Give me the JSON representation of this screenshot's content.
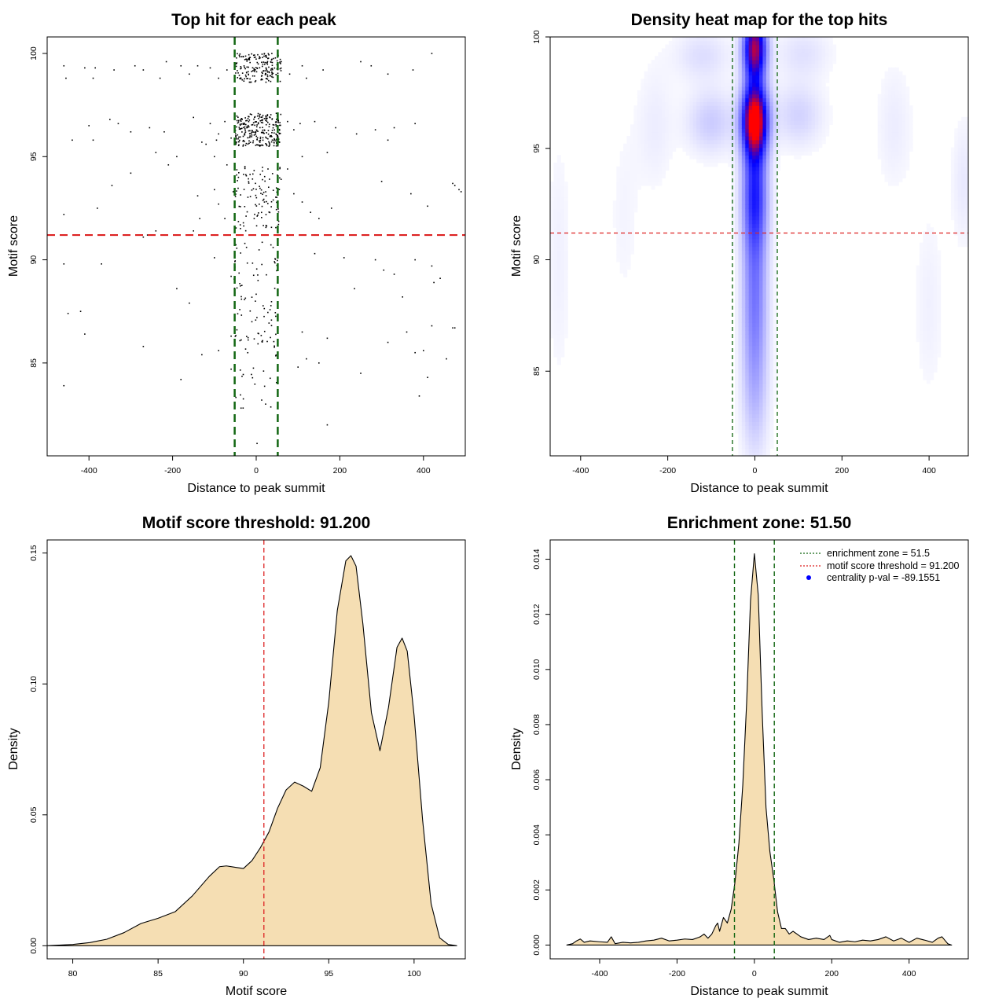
{
  "chart_data": [
    {
      "panel": "top-hit-scatter",
      "type": "scatter",
      "title": "Top hit for each peak",
      "xlabel": "Distance to peak summit",
      "ylabel": "Motif score",
      "xlim": [
        -500,
        500
      ],
      "ylim": [
        80.5,
        100.8
      ],
      "xticks": [
        -400,
        -200,
        0,
        200,
        400
      ],
      "yticks": [
        85,
        90,
        95,
        100
      ],
      "hline": {
        "y": 91.2,
        "color": "#dd2222",
        "style": "dashed"
      },
      "vlines": [
        {
          "x": -51.5,
          "color": "#116611",
          "style": "dashed"
        },
        {
          "x": 51.5,
          "color": "#116611",
          "style": "dashed"
        }
      ],
      "point_color": "#000000",
      "points": [
        [
          -460,
          99.4
        ],
        [
          -455,
          98.8
        ],
        [
          -410,
          99.3
        ],
        [
          -385,
          99.3
        ],
        [
          -390,
          98.8
        ],
        [
          -340,
          99.2
        ],
        [
          -290,
          99.4
        ],
        [
          -270,
          99.2
        ],
        [
          -215,
          99.6
        ],
        [
          -230,
          98.8
        ],
        [
          -180,
          99.4
        ],
        [
          -160,
          99.0
        ],
        [
          -140,
          99.4
        ],
        [
          -110,
          99.3
        ],
        [
          -90,
          98.8
        ],
        [
          -70,
          99.2
        ],
        [
          80,
          99.0
        ],
        [
          110,
          99.4
        ],
        [
          160,
          99.2
        ],
        [
          250,
          99.6
        ],
        [
          275,
          99.4
        ],
        [
          315,
          99.0
        ],
        [
          375,
          99.2
        ],
        [
          420,
          100.0
        ],
        [
          120,
          98.8
        ],
        [
          60,
          99.6
        ],
        [
          -400,
          96.5
        ],
        [
          -350,
          96.8
        ],
        [
          -330,
          96.6
        ],
        [
          -300,
          96.2
        ],
        [
          -255,
          96.4
        ],
        [
          -220,
          96.2
        ],
        [
          -150,
          96.9
        ],
        [
          -110,
          96.6
        ],
        [
          -90,
          96.1
        ],
        [
          -75,
          96.7
        ],
        [
          -60,
          95.9
        ],
        [
          -95,
          95.8
        ],
        [
          -120,
          95.6
        ],
        [
          -130,
          95.7
        ],
        [
          75,
          96.7
        ],
        [
          90,
          96.3
        ],
        [
          105,
          96.6
        ],
        [
          140,
          96.7
        ],
        [
          190,
          96.4
        ],
        [
          240,
          96.1
        ],
        [
          285,
          96.3
        ],
        [
          330,
          96.4
        ],
        [
          380,
          96.6
        ],
        [
          315,
          95.8
        ],
        [
          -390,
          95.8
        ],
        [
          -440,
          95.8
        ],
        [
          -190,
          95.0
        ],
        [
          -240,
          95.2
        ],
        [
          -210,
          94.6
        ],
        [
          -300,
          94.2
        ],
        [
          -100,
          95.0
        ],
        [
          -70,
          94.6
        ],
        [
          75,
          94.4
        ],
        [
          110,
          95.0
        ],
        [
          170,
          95.2
        ],
        [
          -345,
          93.6
        ],
        [
          -380,
          92.5
        ],
        [
          -460,
          92.2
        ],
        [
          -140,
          93.1
        ],
        [
          -100,
          93.4
        ],
        [
          -55,
          93.3
        ],
        [
          -90,
          92.7
        ],
        [
          -75,
          92.0
        ],
        [
          -135,
          92.0
        ],
        [
          -150,
          91.4
        ],
        [
          -240,
          91.4
        ],
        [
          -260,
          91.2
        ],
        [
          90,
          93.2
        ],
        [
          110,
          92.8
        ],
        [
          130,
          92.3
        ],
        [
          150,
          92.0
        ],
        [
          180,
          92.5
        ],
        [
          300,
          93.8
        ],
        [
          370,
          93.2
        ],
        [
          410,
          92.6
        ],
        [
          475,
          93.6
        ],
        [
          485,
          93.4
        ],
        [
          490,
          93.3
        ],
        [
          470,
          93.7
        ],
        [
          -270,
          91.1
        ],
        [
          -460,
          89.8
        ],
        [
          -370,
          89.8
        ],
        [
          -190,
          88.6
        ],
        [
          -160,
          87.9
        ],
        [
          -100,
          90.1
        ],
        [
          -60,
          89.2
        ],
        [
          140,
          90.3
        ],
        [
          210,
          90.1
        ],
        [
          235,
          88.6
        ],
        [
          285,
          90.0
        ],
        [
          305,
          89.5
        ],
        [
          330,
          89.3
        ],
        [
          350,
          88.2
        ],
        [
          380,
          90.0
        ],
        [
          420,
          89.7
        ],
        [
          425,
          88.9
        ],
        [
          440,
          89.1
        ],
        [
          -450,
          87.4
        ],
        [
          -420,
          87.5
        ],
        [
          -410,
          86.4
        ],
        [
          -270,
          85.8
        ],
        [
          -130,
          85.4
        ],
        [
          -90,
          85.6
        ],
        [
          -60,
          84.7
        ],
        [
          -60,
          86.3
        ],
        [
          -180,
          84.2
        ],
        [
          -460,
          83.9
        ],
        [
          110,
          86.5
        ],
        [
          150,
          85.0
        ],
        [
          170,
          86.2
        ],
        [
          250,
          84.5
        ],
        [
          315,
          86.0
        ],
        [
          360,
          86.5
        ],
        [
          380,
          85.5
        ],
        [
          400,
          85.6
        ],
        [
          410,
          84.3
        ],
        [
          455,
          85.2
        ],
        [
          470,
          86.7
        ],
        [
          475,
          86.7
        ],
        [
          420,
          86.8
        ],
        [
          390,
          83.4
        ],
        [
          170,
          82.0
        ],
        [
          100,
          84.8
        ],
        [
          120,
          85.2
        ],
        [
          2,
          81.1
        ]
      ],
      "clusters": [
        {
          "xc": 5,
          "xw": 55,
          "yc": 99.3,
          "yw": 0.7,
          "n": 180
        },
        {
          "xc": 5,
          "xw": 55,
          "yc": 96.3,
          "yw": 0.8,
          "n": 260
        },
        {
          "xc": 5,
          "xw": 55,
          "yc": 93.0,
          "yw": 1.6,
          "n": 110
        },
        {
          "xc": 0,
          "xw": 55,
          "yc": 88.5,
          "yw": 2.5,
          "n": 80
        },
        {
          "xc": 0,
          "xw": 50,
          "yc": 84.5,
          "yw": 1.8,
          "n": 30
        }
      ]
    },
    {
      "panel": "density-heatmap",
      "type": "heatmap",
      "title": "Density heat map for the top hits",
      "xlabel": "Distance to peak summit",
      "ylabel": "Motif score",
      "xlim": [
        -470,
        490
      ],
      "ylim": [
        81.2,
        100
      ],
      "xticks": [
        -400,
        -200,
        0,
        200,
        400
      ],
      "yticks": [
        85,
        90,
        95,
        100
      ],
      "hline": {
        "y": 91.2,
        "color": "#dd2222",
        "style": "dashed"
      },
      "vlines": [
        {
          "x": -51.5,
          "color": "#116611",
          "style": "dashed"
        },
        {
          "x": 51.5,
          "color": "#116611",
          "style": "dashed"
        }
      ],
      "colors": {
        "low": "#ffffff",
        "mid": "#0000ff",
        "high": "#ff0000"
      },
      "hotspots": [
        {
          "x": 0,
          "y": 99.5,
          "sx": 18,
          "sy": 1.0,
          "w": 1.0
        },
        {
          "x": 0,
          "y": 96.3,
          "sx": 20,
          "sy": 1.1,
          "w": 1.25
        },
        {
          "x": 0,
          "y": 93.0,
          "sx": 20,
          "sy": 1.8,
          "w": 0.55
        },
        {
          "x": 0,
          "y": 88.5,
          "sx": 20,
          "sy": 2.6,
          "w": 0.35
        },
        {
          "x": 0,
          "y": 84.0,
          "sx": 22,
          "sy": 2.2,
          "w": 0.15
        },
        {
          "x": -100,
          "y": 96.2,
          "sx": 40,
          "sy": 1.0,
          "w": 0.14
        },
        {
          "x": 100,
          "y": 96.5,
          "sx": 40,
          "sy": 1.0,
          "w": 0.12
        },
        {
          "x": -120,
          "y": 99.2,
          "sx": 45,
          "sy": 0.8,
          "w": 0.09
        },
        {
          "x": 110,
          "y": 99.3,
          "sx": 45,
          "sy": 0.8,
          "w": 0.08
        },
        {
          "x": -230,
          "y": 96.0,
          "sx": 30,
          "sy": 2.0,
          "w": 0.05
        },
        {
          "x": 320,
          "y": 96.0,
          "sx": 30,
          "sy": 2.0,
          "w": 0.05
        },
        {
          "x": 480,
          "y": 93.5,
          "sx": 20,
          "sy": 2.0,
          "w": 0.06
        },
        {
          "x": -450,
          "y": 90.0,
          "sx": 20,
          "sy": 4.0,
          "w": 0.04
        },
        {
          "x": 400,
          "y": 88.0,
          "sx": 25,
          "sy": 3.0,
          "w": 0.04
        },
        {
          "x": -300,
          "y": 92.0,
          "sx": 25,
          "sy": 3.0,
          "w": 0.03
        }
      ]
    },
    {
      "panel": "score-density",
      "type": "area",
      "title": "Motif score threshold: 91.200",
      "xlabel": "Motif score",
      "ylabel": "Density",
      "xlim": [
        78.5,
        103
      ],
      "ylim": [
        -0.005,
        0.155
      ],
      "xticks": [
        80,
        85,
        90,
        95,
        100
      ],
      "yticks": [
        0.0,
        0.05,
        0.1,
        0.15
      ],
      "ytick_labels": [
        "0.00",
        "0.05",
        "0.10",
        "0.15"
      ],
      "fill": "#f5deb3",
      "vline": {
        "x": 91.2,
        "color": "#dd2222",
        "style": "dashed"
      },
      "x": [
        78.5,
        80,
        81,
        82,
        83,
        84,
        85,
        86,
        87,
        88,
        88.6,
        89,
        89.5,
        90,
        90.5,
        91,
        91.5,
        92,
        92.5,
        93,
        93.5,
        94,
        94.5,
        95,
        95.5,
        96,
        96.3,
        96.6,
        97,
        97.5,
        98,
        98.5,
        99,
        99.3,
        99.6,
        100,
        100.5,
        101,
        101.5,
        102,
        102.5
      ],
      "y": [
        0.0,
        0.0005,
        0.0012,
        0.0025,
        0.005,
        0.0085,
        0.0105,
        0.013,
        0.019,
        0.0265,
        0.0302,
        0.0305,
        0.03,
        0.0295,
        0.0325,
        0.0375,
        0.0435,
        0.0525,
        0.0595,
        0.0625,
        0.061,
        0.059,
        0.068,
        0.093,
        0.128,
        0.147,
        0.149,
        0.145,
        0.123,
        0.089,
        0.0745,
        0.091,
        0.114,
        0.1175,
        0.1125,
        0.088,
        0.048,
        0.016,
        0.003,
        0.0005,
        0.0
      ]
    },
    {
      "panel": "distance-density",
      "type": "area",
      "title": "Enrichment zone: 51.50",
      "xlabel": "Distance to peak summit",
      "ylabel": "Density",
      "xlim": [
        -528,
        553
      ],
      "ylim": [
        -0.0005,
        0.0147
      ],
      "xticks": [
        -400,
        -200,
        0,
        200,
        400
      ],
      "yticks": [
        0.0,
        0.002,
        0.004,
        0.006,
        0.008,
        0.01,
        0.012,
        0.014
      ],
      "ytick_labels": [
        "0.000",
        "0.002",
        "0.004",
        "0.006",
        "0.008",
        "0.010",
        "0.012",
        "0.014"
      ],
      "fill": "#f5deb3",
      "vlines": [
        {
          "x": -51.5,
          "color": "#116611",
          "style": "dashed"
        },
        {
          "x": 51.5,
          "color": "#116611",
          "style": "dashed"
        }
      ],
      "x": [
        -485,
        -470,
        -460,
        -450,
        -440,
        -425,
        -400,
        -380,
        -370,
        -360,
        -340,
        -320,
        -300,
        -280,
        -260,
        -240,
        -220,
        -200,
        -180,
        -160,
        -140,
        -130,
        -120,
        -110,
        -100,
        -95,
        -90,
        -80,
        -70,
        -60,
        -50,
        -40,
        -30,
        -20,
        -10,
        0,
        10,
        20,
        30,
        40,
        50,
        60,
        70,
        80,
        90,
        100,
        120,
        140,
        160,
        180,
        195,
        200,
        220,
        240,
        260,
        280,
        300,
        320,
        340,
        360,
        380,
        400,
        420,
        440,
        460,
        475,
        485,
        500,
        510
      ],
      "y": [
        0.0,
        5e-05,
        0.00015,
        0.00022,
        0.0001,
        0.00015,
        0.00012,
        0.0001,
        0.0003,
        5e-05,
        0.0001,
        8e-05,
        0.0001,
        0.00015,
        0.00018,
        0.00025,
        0.00015,
        0.00018,
        0.00022,
        0.0002,
        0.0003,
        0.0004,
        0.00025,
        0.0004,
        0.0007,
        0.0008,
        0.0005,
        0.001,
        0.0008,
        0.0013,
        0.0023,
        0.0037,
        0.0058,
        0.0088,
        0.0125,
        0.0142,
        0.0127,
        0.0085,
        0.005,
        0.0034,
        0.0024,
        0.0012,
        0.0006,
        0.0006,
        0.0004,
        0.0005,
        0.0003,
        0.0002,
        0.00025,
        0.0002,
        0.00035,
        0.0002,
        0.0001,
        0.00015,
        0.00012,
        0.00018,
        0.00015,
        0.0002,
        0.0003,
        0.00015,
        0.00025,
        0.0001,
        0.00025,
        0.00018,
        0.0001,
        0.00025,
        0.0003,
        5e-05,
        0.0
      ],
      "legend": {
        "position": "top-right",
        "entries": [
          {
            "label": "enrichment zone = 51.5",
            "color": "#116611",
            "kind": "dotted-line"
          },
          {
            "label": "motif score threshold = 91.200",
            "color": "#dd2222",
            "kind": "dotted-line"
          },
          {
            "label": "centrality p-val = -89.1551",
            "color": "#0000ff",
            "kind": "dot"
          }
        ]
      }
    }
  ]
}
